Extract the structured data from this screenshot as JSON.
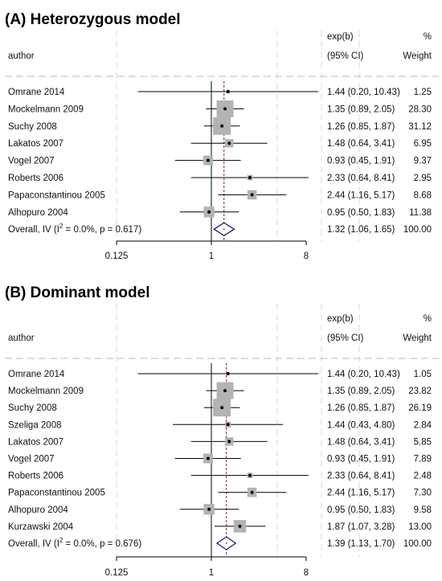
{
  "chart_data": [
    {
      "type": "forest",
      "title": "(A) Heterozygous model",
      "columns": {
        "author": "author",
        "effect_top": "exp(b)",
        "effect_bottom": "(95% CI)",
        "weight_top": "%",
        "weight_bottom": "Weight"
      },
      "x_scale": "log2",
      "xlim": [
        0.125,
        16
      ],
      "x_ticks": [
        0.125,
        1,
        8
      ],
      "x_tick_labels": [
        "0.125",
        "1",
        "8"
      ],
      "null_line": 1,
      "studies": [
        {
          "author": "Omrane 2014",
          "est": 1.44,
          "lo": 0.2,
          "hi": 10.43,
          "ci_text": "1.44 (0.20, 10.43)",
          "weight": 1.25,
          "weight_text": "1.25"
        },
        {
          "author": "Mockelmann 2009",
          "est": 1.35,
          "lo": 0.89,
          "hi": 2.05,
          "ci_text": "1.35 (0.89, 2.05)",
          "weight": 28.3,
          "weight_text": "28.30"
        },
        {
          "author": "Suchy 2008",
          "est": 1.26,
          "lo": 0.85,
          "hi": 1.87,
          "ci_text": "1.26 (0.85, 1.87)",
          "weight": 31.12,
          "weight_text": "31.12"
        },
        {
          "author": "Lakatos 2007",
          "est": 1.48,
          "lo": 0.64,
          "hi": 3.41,
          "ci_text": "1.48 (0.64, 3.41)",
          "weight": 6.95,
          "weight_text": "6.95"
        },
        {
          "author": "Vogel 2007",
          "est": 0.93,
          "lo": 0.45,
          "hi": 1.91,
          "ci_text": "0.93 (0.45, 1.91)",
          "weight": 9.37,
          "weight_text": "9.37"
        },
        {
          "author": "Roberts 2006",
          "est": 2.33,
          "lo": 0.64,
          "hi": 8.41,
          "ci_text": "2.33 (0.64, 8.41)",
          "weight": 2.95,
          "weight_text": "2.95"
        },
        {
          "author": "Papaconstantinou 2005",
          "est": 2.44,
          "lo": 1.16,
          "hi": 5.17,
          "ci_text": "2.44 (1.16, 5.17)",
          "weight": 8.68,
          "weight_text": "8.68"
        },
        {
          "author": "Alhopuro 2004",
          "est": 0.95,
          "lo": 0.5,
          "hi": 1.83,
          "ci_text": "0.95 (0.50, 1.83)",
          "weight": 11.38,
          "weight_text": "11.38"
        }
      ],
      "overall": {
        "label_prefix": "Overall, IV (I",
        "label_sup": "2",
        "label_suffix": " = 0.0%, p = 0.617)",
        "est": 1.32,
        "lo": 1.06,
        "hi": 1.65,
        "ci_text": "1.32 (1.06, 1.65)",
        "weight_text": "100.00"
      },
      "colors": {
        "ci_line": "#000000",
        "box": "#b3b3b3",
        "overall_line": "#8b1a3a",
        "diamond": "#1a237e",
        "axis": "#000000",
        "grid": "#d9d9d9"
      }
    },
    {
      "type": "forest",
      "title": "(B) Dominant model",
      "columns": {
        "author": "author",
        "effect_top": "exp(b)",
        "effect_bottom": "(95% CI)",
        "weight_top": "%",
        "weight_bottom": "Weight"
      },
      "x_scale": "log2",
      "xlim": [
        0.125,
        16
      ],
      "x_ticks": [
        0.125,
        1,
        8
      ],
      "x_tick_labels": [
        "0.125",
        "1",
        "8"
      ],
      "null_line": 1,
      "studies": [
        {
          "author": "Omrane 2014",
          "est": 1.44,
          "lo": 0.2,
          "hi": 10.43,
          "ci_text": "1.44 (0.20, 10.43)",
          "weight": 1.05,
          "weight_text": "1.05"
        },
        {
          "author": "Mockelmann 2009",
          "est": 1.35,
          "lo": 0.89,
          "hi": 2.05,
          "ci_text": "1.35 (0.89, 2.05)",
          "weight": 23.82,
          "weight_text": "23.82"
        },
        {
          "author": "Suchy 2008",
          "est": 1.26,
          "lo": 0.85,
          "hi": 1.87,
          "ci_text": "1.26 (0.85, 1.87)",
          "weight": 26.19,
          "weight_text": "26.19"
        },
        {
          "author": "Szeliga 2008",
          "est": 1.44,
          "lo": 0.43,
          "hi": 4.8,
          "ci_text": "1.44 (0.43, 4.80)",
          "weight": 2.84,
          "weight_text": "2.84"
        },
        {
          "author": "Lakatos 2007",
          "est": 1.48,
          "lo": 0.64,
          "hi": 3.41,
          "ci_text": "1.48 (0.64, 3.41)",
          "weight": 5.85,
          "weight_text": "5.85"
        },
        {
          "author": "Vogel 2007",
          "est": 0.93,
          "lo": 0.45,
          "hi": 1.91,
          "ci_text": "0.93 (0.45, 1.91)",
          "weight": 7.89,
          "weight_text": "7.89"
        },
        {
          "author": "Roberts 2006",
          "est": 2.33,
          "lo": 0.64,
          "hi": 8.41,
          "ci_text": "2.33 (0.64, 8.41)",
          "weight": 2.48,
          "weight_text": "2.48"
        },
        {
          "author": "Papaconstantinou 2005",
          "est": 2.44,
          "lo": 1.16,
          "hi": 5.17,
          "ci_text": "2.44 (1.16, 5.17)",
          "weight": 7.3,
          "weight_text": "7.30"
        },
        {
          "author": "Alhopuro 2004",
          "est": 0.95,
          "lo": 0.5,
          "hi": 1.83,
          "ci_text": "0.95 (0.50, 1.83)",
          "weight": 9.58,
          "weight_text": "9.58"
        },
        {
          "author": "Kurzawski 2004",
          "est": 1.87,
          "lo": 1.07,
          "hi": 3.28,
          "ci_text": "1.87 (1.07, 3.28)",
          "weight": 13.0,
          "weight_text": "13.00"
        }
      ],
      "overall": {
        "label_prefix": "Overall, IV (I",
        "label_sup": "2",
        "label_suffix": " = 0.0%, p = 0.676)",
        "est": 1.39,
        "lo": 1.13,
        "hi": 1.7,
        "ci_text": "1.39 (1.13, 1.70)",
        "weight_text": "100.00"
      },
      "colors": {
        "ci_line": "#000000",
        "box": "#b3b3b3",
        "overall_line": "#8b1a3a",
        "diamond": "#1a237e",
        "axis": "#000000",
        "grid": "#d9d9d9"
      }
    }
  ]
}
